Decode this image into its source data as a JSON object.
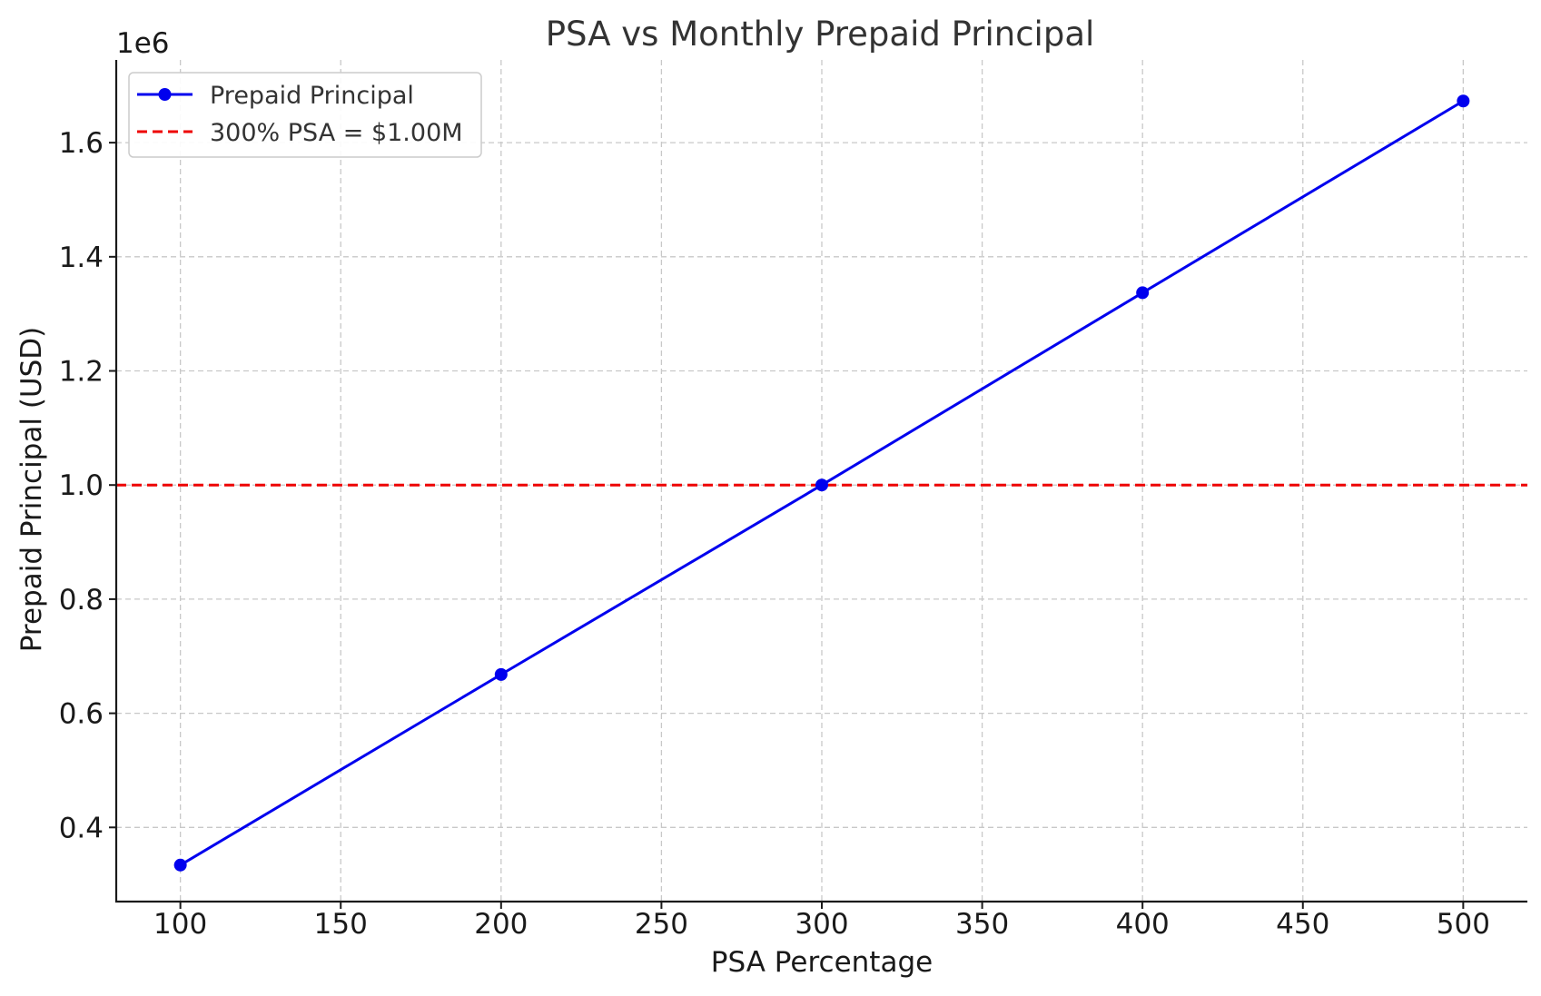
{
  "chart_data": {
    "type": "line",
    "title": "PSA vs Monthly Prepaid Principal",
    "xlabel": "PSA Percentage",
    "ylabel": "Prepaid Principal (USD)",
    "y_offset_label": "1e6",
    "xlim": [
      80,
      520
    ],
    "ylim": [
      0.27,
      1.745
    ],
    "x_ticks": [
      100,
      150,
      200,
      250,
      300,
      350,
      400,
      450,
      500
    ],
    "x_tick_labels": [
      "100",
      "150",
      "200",
      "250",
      "300",
      "350",
      "400",
      "450",
      "500"
    ],
    "y_ticks": [
      0.4,
      0.6,
      0.8,
      1.0,
      1.2,
      1.4,
      1.6
    ],
    "y_tick_labels": [
      "0.4",
      "0.6",
      "0.8",
      "1.0",
      "1.2",
      "1.4",
      "1.6"
    ],
    "grid": true,
    "legend_position": "top-left",
    "series": [
      {
        "name": "Prepaid Principal",
        "color": "#0000ee",
        "style": "solid-with-markers",
        "x": [
          100,
          200,
          300,
          400,
          500
        ],
        "y": [
          0.334,
          0.668,
          1.0,
          1.337,
          1.673
        ]
      }
    ],
    "reference_lines": [
      {
        "name": "300% PSA = $1.00M",
        "color": "#ee0000",
        "style": "dashed",
        "y": 1.0
      }
    ]
  }
}
